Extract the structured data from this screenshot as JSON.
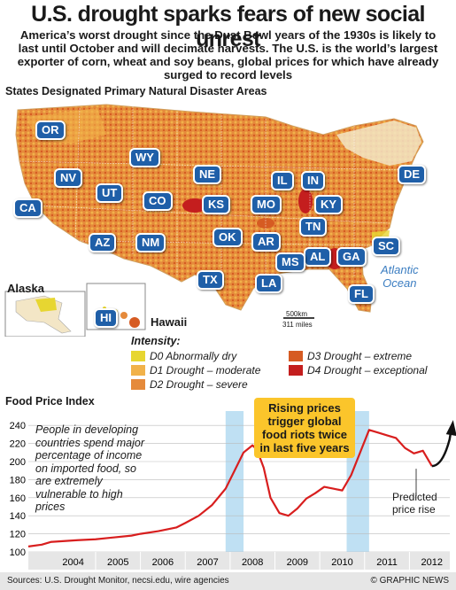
{
  "header": {
    "title": "U.S. drought sparks fears of new social unrest",
    "subtitle": "America’s worst drought since the Dust Bowl years of the 1930s is likely to last until October and will decimate harvests. The U.S. is the world’s largest exporter of corn, wheat and soy beans, global prices for which have already surged to record levels"
  },
  "map": {
    "section_title": "States Designated Primary Natural Disaster Areas",
    "states": [
      "OR",
      "WY",
      "NV",
      "NE",
      "IL",
      "IN",
      "DE",
      "UT",
      "CO",
      "KS",
      "MO",
      "KY",
      "CA",
      "TN",
      "AZ",
      "NM",
      "OK",
      "AR",
      "SC",
      "AL",
      "GA",
      "MS",
      "TX",
      "LA",
      "FL"
    ],
    "ocean_label_1": "Atlantic",
    "ocean_label_2": "Ocean",
    "alaska_label": "Alaska",
    "hawaii_label": "Hawaii",
    "hawaii_badge": "HI",
    "scale_km": "500km",
    "scale_miles": "311 miles",
    "colors": {
      "d0": "#e7d631",
      "d1": "#f1b24a",
      "d2": "#e58a3b",
      "d3": "#d65b22",
      "d4": "#c41e1e",
      "state_badge": "#1f5fa8",
      "land": "#f3e6c6"
    }
  },
  "legend": {
    "title": "Intensity:",
    "items": [
      {
        "label": "D0 Abnormally dry",
        "color": "#e7d631"
      },
      {
        "label": "D1 Drought – moderate",
        "color": "#f1b24a"
      },
      {
        "label": "D2 Drought – severe",
        "color": "#e58a3b"
      },
      {
        "label": "D3 Drought – extreme",
        "color": "#d65b22"
      },
      {
        "label": "D4 Drought – exceptional",
        "color": "#c41e1e"
      }
    ]
  },
  "chart_data": {
    "type": "line",
    "title": "Food Price Index",
    "ylim": [
      100,
      250
    ],
    "yticks": [
      100,
      120,
      140,
      160,
      180,
      200,
      220,
      240
    ],
    "xlim": [
      2003.5,
      2012.9
    ],
    "categories": [
      "2004",
      "2005",
      "2006",
      "2007",
      "2008",
      "2009",
      "2010",
      "2011",
      "2012"
    ],
    "x": [
      2003.5,
      2003.8,
      2004.0,
      2004.3,
      2004.6,
      2005.0,
      2005.4,
      2005.8,
      2006.0,
      2006.4,
      2006.8,
      2007.0,
      2007.3,
      2007.6,
      2007.9,
      2008.1,
      2008.3,
      2008.5,
      2008.6,
      2008.75,
      2008.9,
      2009.1,
      2009.3,
      2009.5,
      2009.7,
      2009.9,
      2010.1,
      2010.3,
      2010.5,
      2010.7,
      2010.9,
      2011.1,
      2011.3,
      2011.5,
      2011.7,
      2011.9,
      2012.1,
      2012.3,
      2012.5
    ],
    "values": [
      106,
      108,
      111,
      112,
      113,
      114,
      116,
      118,
      120,
      123,
      127,
      132,
      140,
      152,
      170,
      190,
      210,
      218,
      213,
      193,
      160,
      143,
      140,
      148,
      159,
      165,
      172,
      170,
      168,
      185,
      210,
      235,
      232,
      229,
      226,
      215,
      209,
      212,
      195
    ],
    "highlight_periods": [
      [
        2007.9,
        2008.3
      ],
      [
        2010.6,
        2011.1
      ]
    ],
    "callout": "Rising prices trigger global food riots twice in last five years",
    "note": "People in developing countries spend major percentage of income on imported food, so are extremely vulnerable to high prices",
    "predicted_label": "Predicted price rise",
    "line_color": "#d81e1e",
    "highlight_color": "#bfe0f3"
  },
  "footer": {
    "sources": "Sources: U.S. Drought Monitor, necsi.edu, wire agencies",
    "copyright": "© GRAPHIC NEWS"
  }
}
